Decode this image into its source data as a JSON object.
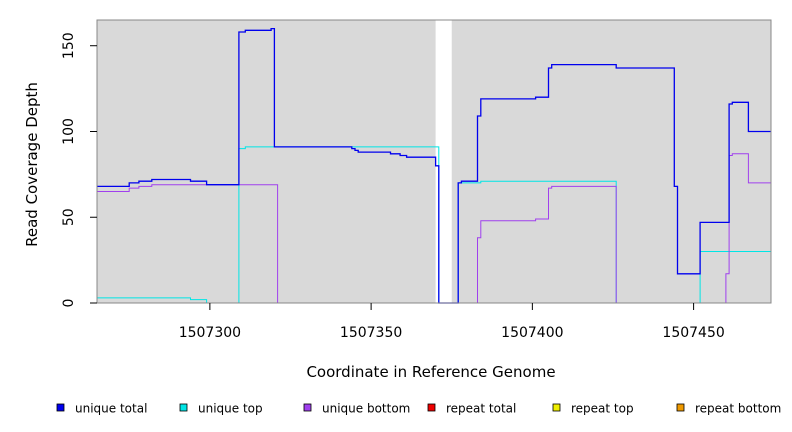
{
  "chart_data": {
    "type": "line",
    "title": "",
    "xlabel": "Coordinate in Reference Genome",
    "ylabel": "Read Coverage Depth",
    "xlim": [
      1507265,
      1507474
    ],
    "ylim": [
      0,
      165
    ],
    "xticks": [
      1507300,
      1507350,
      1507400,
      1507450
    ],
    "yticks": [
      0,
      50,
      100,
      150
    ],
    "grid": false,
    "background": "#d9d9d9",
    "gaps": [
      [
        1507370,
        1507375
      ]
    ],
    "legend_position": "bottom",
    "series": [
      {
        "name": "unique total",
        "color": "#0000ee",
        "x": [
          1507265,
          1507273,
          1507275,
          1507278,
          1507282,
          1507293,
          1507294,
          1507299,
          1507308,
          1507309,
          1507311,
          1507319,
          1507320,
          1507339,
          1507343,
          1507344,
          1507345,
          1507346,
          1507355,
          1507356,
          1507358,
          1507359,
          1507361,
          1507369,
          1507370,
          1507371,
          1507375,
          1507377,
          1507378,
          1507380,
          1507382,
          1507383,
          1507384,
          1507385,
          1507400,
          1507401,
          1507404,
          1507405,
          1507406,
          1507425,
          1507426,
          1507444,
          1507445,
          1507451,
          1507452,
          1507460,
          1507461,
          1507462,
          1507466,
          1507467,
          1507474
        ],
        "y": [
          68,
          68,
          70,
          71,
          72,
          72,
          71,
          69,
          69,
          158,
          159,
          160,
          91,
          91,
          91,
          90,
          89,
          88,
          88,
          87,
          87,
          86,
          85,
          85,
          80,
          0,
          0,
          70,
          71,
          71,
          71,
          109,
          119,
          119,
          119,
          120,
          120,
          137,
          139,
          139,
          137,
          68,
          17,
          17,
          47,
          47,
          116,
          117,
          117,
          100,
          100
        ]
      },
      {
        "name": "unique top",
        "color": "#00e5e5",
        "x": [
          1507265,
          1507293,
          1507294,
          1507299,
          1507308,
          1507309,
          1507311,
          1507320,
          1507369,
          1507370,
          1507371,
          1507375,
          1507377,
          1507384,
          1507400,
          1507425,
          1507426,
          1507444,
          1507451,
          1507452,
          1507460,
          1507461,
          1507462,
          1507474
        ],
        "y": [
          3,
          3,
          2,
          0,
          0,
          90,
          91,
          91,
          91,
          91,
          0,
          0,
          70,
          71,
          71,
          71,
          0,
          0,
          0,
          30,
          30,
          30,
          30,
          30
        ]
      },
      {
        "name": "unique bottom",
        "color": "#a040ee",
        "x": [
          1507265,
          1507273,
          1507275,
          1507278,
          1507282,
          1507293,
          1507294,
          1507299,
          1507308,
          1507309,
          1507320,
          1507321,
          1507369,
          1507370,
          1507375,
          1507377,
          1507382,
          1507383,
          1507384,
          1507385,
          1507400,
          1507401,
          1507404,
          1507405,
          1507406,
          1507425,
          1507426,
          1507444,
          1507451,
          1507460,
          1507461,
          1507462,
          1507466,
          1507467,
          1507474
        ],
        "y": [
          65,
          65,
          67,
          68,
          69,
          69,
          69,
          69,
          69,
          69,
          69,
          0,
          0,
          0,
          0,
          0,
          0,
          38,
          48,
          48,
          48,
          49,
          49,
          67,
          68,
          68,
          0,
          0,
          0,
          17,
          86,
          87,
          87,
          70,
          70
        ]
      },
      {
        "name": "repeat total",
        "color": "#ee0000",
        "x": [
          1507265,
          1507474
        ],
        "y": [
          0,
          0
        ]
      },
      {
        "name": "repeat top",
        "color": "#eeee00",
        "x": [
          1507265,
          1507474
        ],
        "y": [
          0,
          0
        ]
      },
      {
        "name": "repeat bottom",
        "color": "#ee9900",
        "x": [
          1507265,
          1507474
        ],
        "y": [
          0,
          0
        ]
      }
    ]
  }
}
